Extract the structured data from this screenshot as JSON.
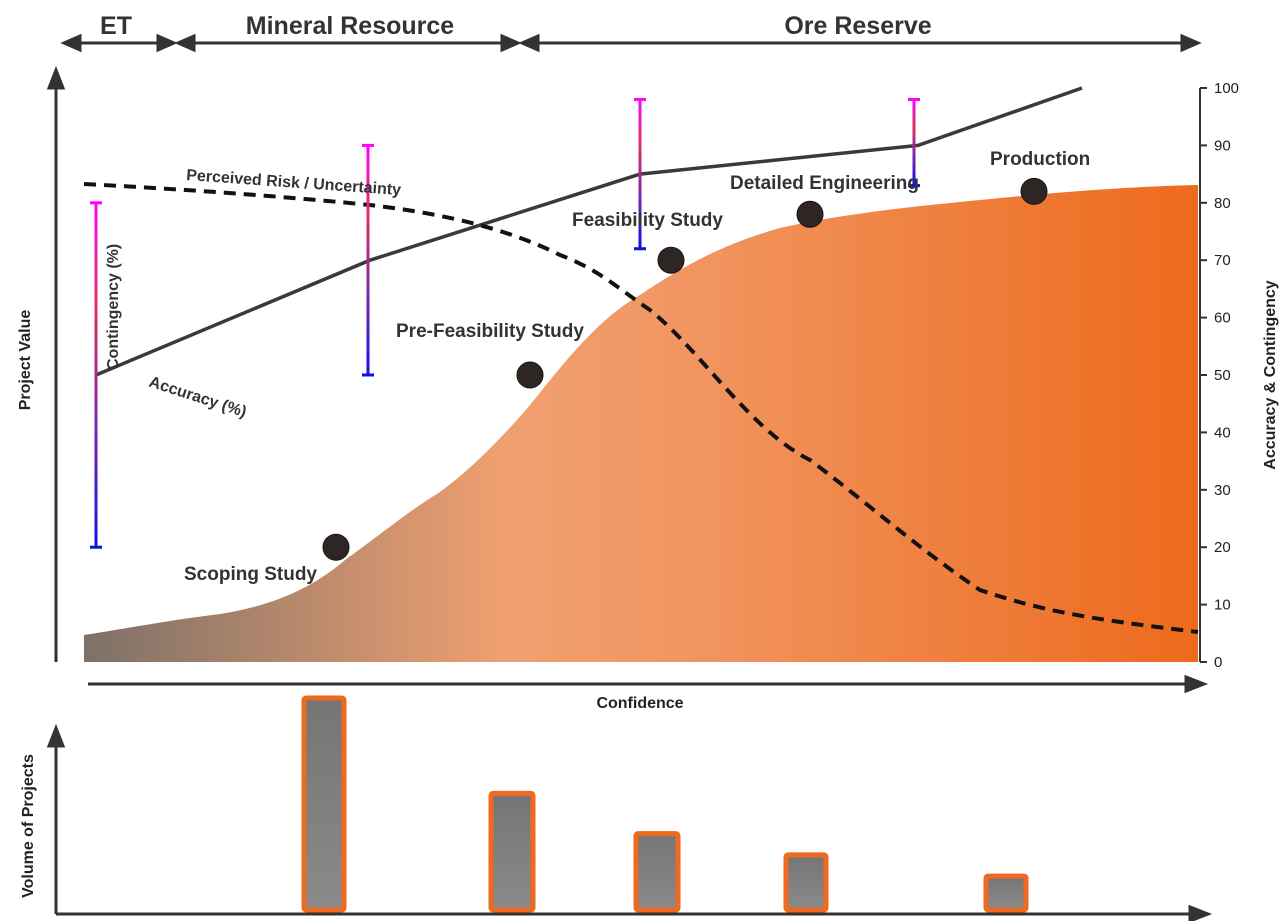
{
  "phases": {
    "et": "ET",
    "mineral_resource": "Mineral Resource",
    "ore_reserve": "Ore Reserve"
  },
  "axes": {
    "y_left_title": "Project Value",
    "y_right_title": "Accuracy & Contingency",
    "x_title": "Confidence",
    "lower_y_title": "Volume of Projects",
    "right_ticks": [
      "0",
      "10",
      "20",
      "30",
      "40",
      "50",
      "60",
      "70",
      "80",
      "90",
      "100"
    ]
  },
  "curves": {
    "risk_label": "Perceived Risk / Uncertainty",
    "accuracy_label": "Accuracy (%)",
    "contingency_label": "Contingency (%)"
  },
  "stages": [
    {
      "name": "Scoping Study",
      "value": 20
    },
    {
      "name": "Pre-Feasibility Study",
      "value": 50
    },
    {
      "name": "Feasibility Study",
      "value": 70
    },
    {
      "name": "Detailed Engineering",
      "value": 78
    },
    {
      "name": "Production",
      "value": 82
    }
  ],
  "accuracy_line": [
    50,
    70,
    85,
    90,
    100
  ],
  "contingency_bars": [
    {
      "low": 20,
      "high": 80
    },
    {
      "low": 50,
      "high": 90
    },
    {
      "low": 72,
      "high": 98
    },
    {
      "low": 83,
      "high": 98
    }
  ],
  "risk_curve": [
    84,
    80,
    70,
    40,
    12,
    5
  ],
  "volume_bars": [
    1.0,
    0.55,
    0.36,
    0.26,
    0.16
  ],
  "colors": {
    "orange": "#ee6a1e",
    "grey": "#7a7a7a",
    "line": "#3a3a3a",
    "magenta": "#ff00ff",
    "blue": "#1010e0"
  }
}
